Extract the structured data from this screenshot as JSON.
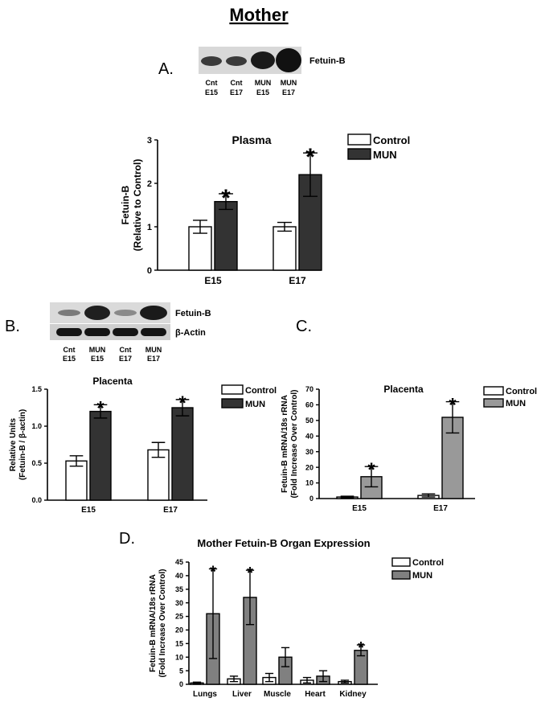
{
  "figure_title": "Mother",
  "panels": {
    "A": "A.",
    "B": "B.",
    "C": "C.",
    "D": "D."
  },
  "blots": {
    "A": {
      "band_labels": [
        "Fetuin-B"
      ],
      "lanes": [
        [
          "Cnt",
          "E15"
        ],
        [
          "Cnt",
          "E17"
        ],
        [
          "MUN",
          "E15"
        ],
        [
          "MUN",
          "E17"
        ]
      ]
    },
    "B": {
      "band_labels": [
        "Fetuin-B",
        "β-Actin"
      ],
      "lanes": [
        [
          "Cnt",
          "E15"
        ],
        [
          "MUN",
          "E15"
        ],
        [
          "Cnt",
          "E17"
        ],
        [
          "MUN",
          "E17"
        ]
      ]
    }
  },
  "colors": {
    "control": "#ffffff",
    "mun_dark": "#333333",
    "mun_gray": "#999999",
    "mun_mid": "#808080",
    "blot_bg": "#d8d8d8"
  },
  "chart_data": [
    {
      "id": "plasma",
      "type": "bar",
      "title": "Plasma",
      "ylabel_lines": [
        "Fetuin-B",
        "(Relative to Control)"
      ],
      "categories": [
        "E15",
        "E17"
      ],
      "ylim": [
        0,
        3
      ],
      "yticks": [
        0,
        1,
        2,
        3
      ],
      "legend": [
        "Control",
        "MUN"
      ],
      "series": [
        {
          "name": "Control",
          "values": [
            1.0,
            1.0
          ],
          "errors": [
            0.15,
            0.1
          ],
          "star": [
            false,
            false
          ]
        },
        {
          "name": "MUN",
          "values": [
            1.58,
            2.2
          ],
          "errors": [
            0.18,
            0.5
          ],
          "star": [
            true,
            true
          ]
        }
      ],
      "star_symbol": "*"
    },
    {
      "id": "placenta_b",
      "type": "bar",
      "title": "Placenta",
      "ylabel_lines": [
        "Relative Units",
        "(Fetuin-B / β-actin)"
      ],
      "categories": [
        "E15",
        "E17"
      ],
      "ylim": [
        0,
        1.5
      ],
      "yticks": [
        "0.0",
        "0.5",
        "1.0",
        "1.5"
      ],
      "legend": [
        "Control",
        "MUN"
      ],
      "series": [
        {
          "name": "Control",
          "values": [
            0.53,
            0.68
          ],
          "errors": [
            0.07,
            0.1
          ],
          "star": [
            false,
            false
          ]
        },
        {
          "name": "MUN",
          "values": [
            1.2,
            1.25
          ],
          "errors": [
            0.09,
            0.11
          ],
          "star": [
            true,
            true
          ]
        }
      ],
      "star_symbol": "*"
    },
    {
      "id": "placenta_c",
      "type": "bar",
      "title": "Placenta",
      "ylabel_lines": [
        "Fetuin-B mRNA/18s rRNA",
        "(Fold Increase Over Control)"
      ],
      "categories": [
        "E15",
        "E17"
      ],
      "ylim": [
        0,
        70
      ],
      "yticks": [
        0,
        10,
        20,
        30,
        40,
        50,
        60,
        70
      ],
      "legend": [
        "Control",
        "MUN"
      ],
      "series": [
        {
          "name": "Control",
          "values": [
            1,
            2
          ],
          "errors": [
            0.5,
            1
          ],
          "star": [
            false,
            false
          ]
        },
        {
          "name": "MUN",
          "values": [
            14,
            52
          ],
          "errors": [
            6.5,
            10
          ],
          "star": [
            true,
            true
          ]
        }
      ],
      "star_symbol": "*"
    },
    {
      "id": "organ",
      "type": "bar",
      "title": "Mother Fetuin-B Organ Expression",
      "ylabel_lines": [
        "Fetuin-B mRNA/18s rRNA",
        "(Fold Increase Over Control)"
      ],
      "categories": [
        "Lungs",
        "Liver",
        "Muscle",
        "Heart",
        "Kidney"
      ],
      "ylim": [
        0,
        45
      ],
      "yticks": [
        0,
        5,
        10,
        15,
        20,
        25,
        30,
        35,
        40,
        45
      ],
      "legend": [
        "Control",
        "MUN"
      ],
      "series": [
        {
          "name": "Control",
          "values": [
            0.5,
            2,
            2.5,
            1.5,
            1
          ],
          "errors": [
            0.3,
            1,
            1.5,
            1,
            0.5
          ],
          "star": [
            false,
            false,
            false,
            false,
            false
          ]
        },
        {
          "name": "MUN",
          "values": [
            26,
            32,
            10,
            3,
            12.5
          ],
          "errors": [
            16.5,
            10,
            3.5,
            2,
            2
          ],
          "star": [
            true,
            true,
            false,
            false,
            true
          ]
        }
      ],
      "star_symbol": "*"
    }
  ]
}
